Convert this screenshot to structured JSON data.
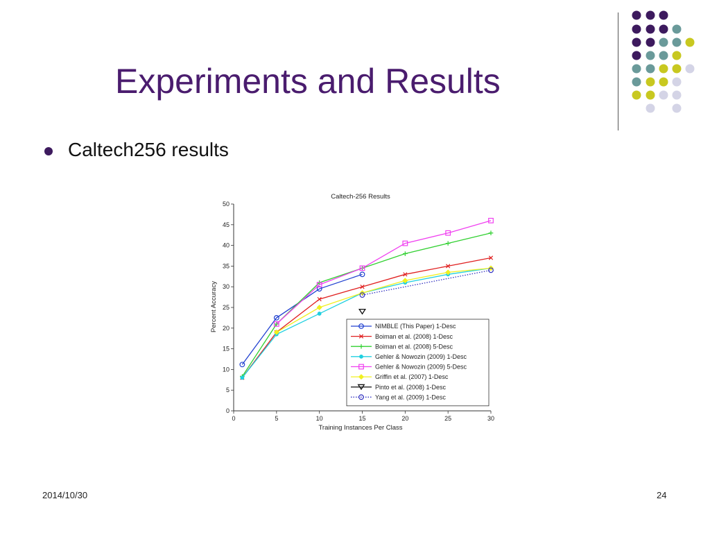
{
  "slide": {
    "title": "Experiments and Results",
    "bullet": "Caltech256 results",
    "footer_date": "2014/10/30",
    "page_number": "24",
    "accent_color": "#4a1c6e",
    "decor_palette": [
      "#3d1a5e",
      "#6a9a9a",
      "#c8c820",
      "#d4d4e6"
    ]
  },
  "chart_data": {
    "type": "line",
    "title": "Caltech-256 Results",
    "xlabel": "Training Instances Per Class",
    "ylabel": "Percent Accuracy",
    "xlim": [
      0,
      30
    ],
    "ylim": [
      0,
      50
    ],
    "xticks": [
      0,
      5,
      10,
      15,
      20,
      25,
      30
    ],
    "yticks": [
      0,
      5,
      10,
      15,
      20,
      25,
      30,
      35,
      40,
      45,
      50
    ],
    "legend_position": "lower-right",
    "series": [
      {
        "name": "NIMBLE (This Paper) 1-Desc",
        "color": "#2040d0",
        "marker": "circle",
        "dash": "solid",
        "x": [
          1,
          5,
          10,
          15
        ],
        "y": [
          11.2,
          22.5,
          29.5,
          33
        ]
      },
      {
        "name": "Boiman et al. (2008) 1-Desc",
        "color": "#e02020",
        "marker": "x",
        "dash": "solid",
        "x": [
          1,
          5,
          10,
          15,
          20,
          25,
          30
        ],
        "y": [
          8,
          19,
          27,
          30,
          33,
          35,
          37
        ]
      },
      {
        "name": "Boiman et al. (2008) 5-Desc",
        "color": "#30d030",
        "marker": "plus",
        "dash": "solid",
        "x": [
          1,
          5,
          10,
          15,
          20,
          25,
          30
        ],
        "y": [
          8.3,
          21,
          31,
          34.5,
          38,
          40.5,
          43
        ]
      },
      {
        "name": "Gehler & Nowozin (2009) 1-Desc",
        "color": "#20d0e0",
        "marker": "dot",
        "dash": "solid",
        "x": [
          1,
          5,
          10,
          15,
          20,
          25,
          30
        ],
        "y": [
          8,
          18.5,
          23.5,
          28.5,
          31,
          33,
          34.5
        ]
      },
      {
        "name": "Gehler & Nowozin (2009) 5-Desc",
        "color": "#f040f0",
        "marker": "square",
        "dash": "solid",
        "x": [
          5,
          10,
          15,
          20,
          25,
          30
        ],
        "y": [
          21,
          30.5,
          34.5,
          40.5,
          43,
          46
        ]
      },
      {
        "name": "Griffin et al. (2007) 1-Desc",
        "color": "#f0f020",
        "marker": "diamond",
        "dash": "solid",
        "x": [
          5,
          10,
          15,
          20,
          25,
          30
        ],
        "y": [
          19,
          25,
          28.5,
          31.5,
          33.5,
          34.5
        ]
      },
      {
        "name": "Pinto et al. (2008) 1-Desc",
        "color": "#111111",
        "marker": "triangle-down",
        "dash": "solid",
        "x": [
          15
        ],
        "y": [
          24
        ]
      },
      {
        "name": "Yang et al. (2009) 1-Desc",
        "color": "#3030c0",
        "marker": "circle",
        "dash": "dotted",
        "x": [
          15,
          30
        ],
        "y": [
          28,
          34
        ]
      }
    ]
  }
}
